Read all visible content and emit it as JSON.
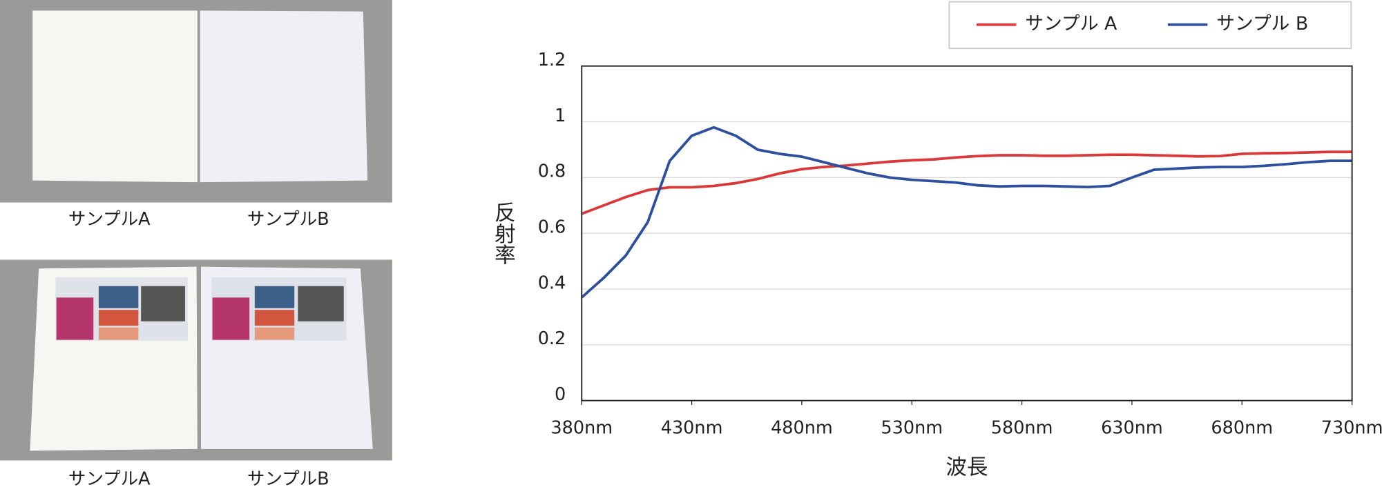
{
  "photos": [
    {
      "labels": [
        "サンプルA",
        "サンプルB"
      ]
    },
    {
      "labels": [
        "サンプルA",
        "サンプルB"
      ]
    }
  ],
  "chart_data": {
    "type": "line",
    "x_label": "波長",
    "y_label": "反射率",
    "x": [
      380,
      390,
      400,
      410,
      420,
      430,
      440,
      450,
      460,
      470,
      480,
      490,
      500,
      510,
      520,
      530,
      540,
      550,
      560,
      570,
      580,
      590,
      600,
      610,
      620,
      630,
      640,
      650,
      660,
      670,
      680,
      690,
      700,
      710,
      720,
      730
    ],
    "series": [
      {
        "name": "サンプル A",
        "color": "#d83a3a",
        "values": [
          0.67,
          0.7,
          0.73,
          0.755,
          0.765,
          0.765,
          0.77,
          0.78,
          0.795,
          0.815,
          0.83,
          0.838,
          0.843,
          0.85,
          0.857,
          0.862,
          0.865,
          0.872,
          0.877,
          0.88,
          0.88,
          0.878,
          0.878,
          0.88,
          0.882,
          0.882,
          0.88,
          0.878,
          0.876,
          0.877,
          0.885,
          0.887,
          0.888,
          0.89,
          0.892,
          0.892
        ]
      },
      {
        "name": "サンプル B",
        "color": "#2e4f9e",
        "values": [
          0.37,
          0.44,
          0.52,
          0.64,
          0.86,
          0.95,
          0.98,
          0.95,
          0.9,
          0.885,
          0.875,
          0.855,
          0.835,
          0.815,
          0.8,
          0.792,
          0.787,
          0.782,
          0.772,
          0.768,
          0.77,
          0.77,
          0.768,
          0.766,
          0.77,
          0.8,
          0.828,
          0.832,
          0.836,
          0.838,
          0.838,
          0.842,
          0.848,
          0.855,
          0.86,
          0.86
        ]
      }
    ],
    "xlim": [
      380,
      730
    ],
    "xticks": [
      {
        "value": 380,
        "label": "380nm"
      },
      {
        "value": 430,
        "label": "430nm"
      },
      {
        "value": 480,
        "label": "480nm"
      },
      {
        "value": 530,
        "label": "530nm"
      },
      {
        "value": 580,
        "label": "580nm"
      },
      {
        "value": 630,
        "label": "630nm"
      },
      {
        "value": 680,
        "label": "680nm"
      },
      {
        "value": 730,
        "label": "730nm"
      }
    ],
    "ylim": [
      0,
      1.2
    ],
    "yticks": [
      0,
      0.2,
      0.4,
      0.6,
      0.8,
      1,
      1.2
    ],
    "grid": true,
    "legend": "top-right"
  }
}
